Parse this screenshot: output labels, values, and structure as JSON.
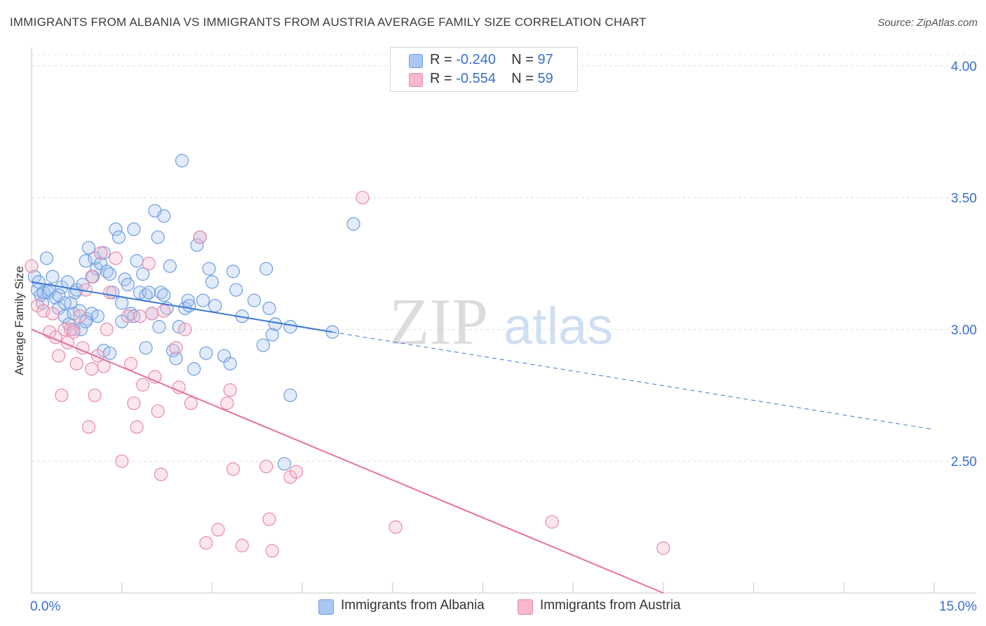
{
  "title": "IMMIGRANTS FROM ALBANIA VS IMMIGRANTS FROM AUSTRIA AVERAGE FAMILY SIZE CORRELATION CHART",
  "source": "Source: ZipAtlas.com",
  "watermark": {
    "zip": "ZIP",
    "atlas": "atlas"
  },
  "legend": {
    "rows": [
      {
        "r_label": "R = ",
        "r_value": "-0.240",
        "n_label": "N = ",
        "n_value": "97",
        "color": "#a9c7f2",
        "edge": "#6e9de0"
      },
      {
        "r_label": "R = ",
        "r_value": "-0.554",
        "n_label": "N = ",
        "n_value": "59",
        "color": "#f7b8cc",
        "edge": "#e88aa8"
      }
    ]
  },
  "bottom_legend": [
    {
      "label": "Immigrants from Albania",
      "color": "#a9c7f2",
      "edge": "#6e9de0"
    },
    {
      "label": "Immigrants from Austria",
      "color": "#f7b8cc",
      "edge": "#e88aa8"
    }
  ],
  "chart_data": {
    "type": "scatter",
    "title": "IMMIGRANTS FROM ALBANIA VS IMMIGRANTS FROM AUSTRIA AVERAGE FAMILY SIZE CORRELATION CHART",
    "xlabel": "",
    "ylabel": "Average Family Size",
    "xlim": [
      0,
      15
    ],
    "ylim": [
      2.0,
      4.05
    ],
    "x_tick_labels": [
      "0.0%",
      "15.0%"
    ],
    "y_ticks": [
      2.5,
      3.0,
      3.5,
      4.0
    ],
    "y_tick_labels": [
      "2.50",
      "3.00",
      "3.50",
      "4.00"
    ],
    "grid": true,
    "colors": {
      "albania": "#3a78d4",
      "austria": "#e8709a",
      "albania_fill": "#a9c7f2",
      "austria_fill": "#f7b8cc",
      "tick_label": "#3a6fd0"
    },
    "series": [
      {
        "name": "Immigrants from Albania",
        "r": -0.24,
        "n": 97,
        "trend": {
          "x0": 0.0,
          "y0": 3.18,
          "x1": 5.0,
          "y1": 2.99,
          "dash_to_x": 15.0,
          "dash_to_y": 2.62
        },
        "points": [
          [
            0.05,
            3.2
          ],
          [
            0.1,
            3.15
          ],
          [
            0.12,
            3.18
          ],
          [
            0.15,
            3.13
          ],
          [
            0.18,
            3.1
          ],
          [
            0.2,
            3.14
          ],
          [
            0.25,
            3.27
          ],
          [
            0.28,
            3.14
          ],
          [
            0.3,
            3.15
          ],
          [
            0.35,
            3.2
          ],
          [
            0.4,
            3.12
          ],
          [
            0.45,
            3.08
          ],
          [
            0.5,
            3.16
          ],
          [
            0.55,
            3.05
          ],
          [
            0.6,
            3.18
          ],
          [
            0.62,
            3.02
          ],
          [
            0.65,
            3.1
          ],
          [
            0.7,
            3.06
          ],
          [
            0.72,
            3.14
          ],
          [
            0.75,
            3.15
          ],
          [
            0.8,
            3.07
          ],
          [
            0.82,
            3.0
          ],
          [
            0.85,
            3.17
          ],
          [
            0.9,
            3.26
          ],
          [
            0.92,
            3.04
          ],
          [
            0.95,
            3.31
          ],
          [
            1.0,
            3.06
          ],
          [
            1.02,
            3.2
          ],
          [
            1.05,
            3.27
          ],
          [
            1.08,
            3.23
          ],
          [
            1.1,
            3.05
          ],
          [
            1.15,
            3.25
          ],
          [
            1.2,
            3.29
          ],
          [
            1.25,
            3.22
          ],
          [
            1.3,
            3.21
          ],
          [
            1.35,
            3.14
          ],
          [
            1.4,
            3.38
          ],
          [
            1.45,
            3.35
          ],
          [
            1.5,
            3.1
          ],
          [
            1.55,
            3.19
          ],
          [
            1.6,
            3.17
          ],
          [
            1.65,
            3.06
          ],
          [
            1.7,
            3.05
          ],
          [
            1.75,
            3.26
          ],
          [
            1.8,
            3.14
          ],
          [
            1.85,
            3.21
          ],
          [
            1.9,
            3.13
          ],
          [
            1.95,
            3.14
          ],
          [
            2.0,
            3.06
          ],
          [
            2.05,
            3.45
          ],
          [
            2.1,
            3.35
          ],
          [
            2.12,
            3.01
          ],
          [
            2.15,
            3.14
          ],
          [
            2.2,
            3.43
          ],
          [
            2.25,
            3.08
          ],
          [
            2.3,
            3.24
          ],
          [
            2.35,
            2.92
          ],
          [
            2.4,
            2.89
          ],
          [
            2.45,
            3.01
          ],
          [
            2.5,
            3.64
          ],
          [
            2.55,
            3.08
          ],
          [
            2.6,
            3.11
          ],
          [
            2.62,
            3.09
          ],
          [
            2.7,
            2.85
          ],
          [
            2.75,
            3.32
          ],
          [
            2.8,
            3.35
          ],
          [
            2.85,
            3.11
          ],
          [
            2.9,
            2.91
          ],
          [
            2.95,
            3.23
          ],
          [
            3.0,
            3.18
          ],
          [
            3.05,
            3.09
          ],
          [
            3.2,
            2.9
          ],
          [
            3.3,
            2.87
          ],
          [
            3.35,
            3.22
          ],
          [
            3.4,
            3.15
          ],
          [
            3.5,
            3.05
          ],
          [
            3.7,
            3.11
          ],
          [
            3.85,
            2.94
          ],
          [
            3.9,
            3.23
          ],
          [
            3.95,
            3.08
          ],
          [
            4.0,
            2.98
          ],
          [
            4.05,
            3.02
          ],
          [
            4.3,
            2.75
          ],
          [
            4.2,
            2.49
          ],
          [
            4.3,
            3.01
          ],
          [
            5.0,
            2.99
          ],
          [
            5.35,
            3.4
          ],
          [
            1.2,
            2.92
          ],
          [
            1.3,
            2.91
          ],
          [
            1.5,
            3.03
          ],
          [
            0.9,
            3.03
          ],
          [
            0.7,
            3.0
          ],
          [
            0.55,
            3.1
          ],
          [
            0.45,
            3.13
          ],
          [
            1.9,
            2.93
          ],
          [
            2.2,
            3.13
          ],
          [
            1.7,
            3.38
          ]
        ]
      },
      {
        "name": "Immigrants from Austria",
        "r": -0.554,
        "n": 59,
        "trend": {
          "x0": 0.0,
          "y0": 3.0,
          "x1": 10.5,
          "y1": 2.0
        },
        "points": [
          [
            0.0,
            3.24
          ],
          [
            0.1,
            3.09
          ],
          [
            0.2,
            3.07
          ],
          [
            0.3,
            2.99
          ],
          [
            0.35,
            3.06
          ],
          [
            0.4,
            2.97
          ],
          [
            0.45,
            2.9
          ],
          [
            0.5,
            2.75
          ],
          [
            0.55,
            3.0
          ],
          [
            0.6,
            2.95
          ],
          [
            0.65,
            3.0
          ],
          [
            0.7,
            2.99
          ],
          [
            0.75,
            2.87
          ],
          [
            0.8,
            3.05
          ],
          [
            0.85,
            2.93
          ],
          [
            0.9,
            3.15
          ],
          [
            0.95,
            2.63
          ],
          [
            1.0,
            3.2
          ],
          [
            1.05,
            2.75
          ],
          [
            1.1,
            2.9
          ],
          [
            1.15,
            3.29
          ],
          [
            1.2,
            2.86
          ],
          [
            1.25,
            3.0
          ],
          [
            1.3,
            3.14
          ],
          [
            1.4,
            3.27
          ],
          [
            1.5,
            2.5
          ],
          [
            1.6,
            3.05
          ],
          [
            1.65,
            2.87
          ],
          [
            1.7,
            2.72
          ],
          [
            1.75,
            2.63
          ],
          [
            1.8,
            3.05
          ],
          [
            1.85,
            2.79
          ],
          [
            1.95,
            3.25
          ],
          [
            2.0,
            3.06
          ],
          [
            2.05,
            2.82
          ],
          [
            2.1,
            2.69
          ],
          [
            2.15,
            2.45
          ],
          [
            2.2,
            3.07
          ],
          [
            2.4,
            2.93
          ],
          [
            2.45,
            2.78
          ],
          [
            2.55,
            3.0
          ],
          [
            2.65,
            2.72
          ],
          [
            2.8,
            3.35
          ],
          [
            2.9,
            2.19
          ],
          [
            3.1,
            2.24
          ],
          [
            3.25,
            2.72
          ],
          [
            3.3,
            2.77
          ],
          [
            3.35,
            2.47
          ],
          [
            3.5,
            2.18
          ],
          [
            3.9,
            2.48
          ],
          [
            3.95,
            2.28
          ],
          [
            4.0,
            2.16
          ],
          [
            4.3,
            2.44
          ],
          [
            4.4,
            2.46
          ],
          [
            5.5,
            3.5
          ],
          [
            6.05,
            2.25
          ],
          [
            8.65,
            2.27
          ],
          [
            10.5,
            2.17
          ],
          [
            1.0,
            2.85
          ]
        ]
      }
    ]
  }
}
